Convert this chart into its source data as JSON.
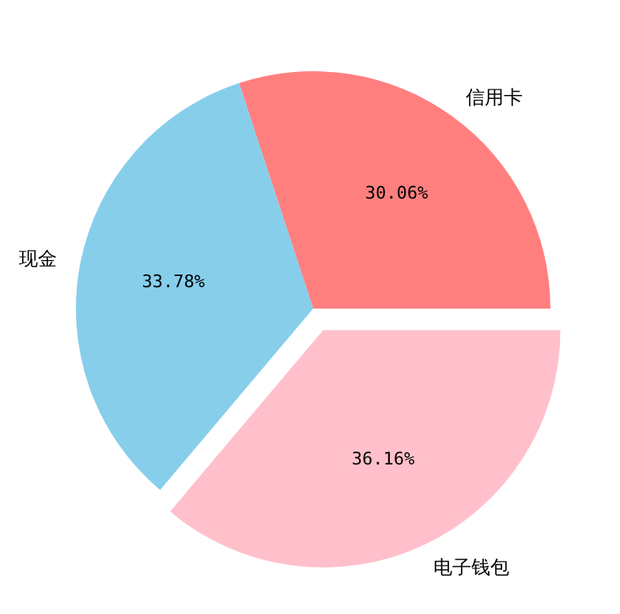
{
  "chart_data": {
    "type": "pie",
    "categories": [
      "信用卡",
      "现金",
      "电子钱包"
    ],
    "values": [
      30.06,
      33.78,
      36.16
    ],
    "colors": [
      "#ff7f7f",
      "#87ceeb",
      "#ffc0cb"
    ],
    "value_labels": [
      "30.06%",
      "33.78%",
      "36.16%"
    ]
  }
}
